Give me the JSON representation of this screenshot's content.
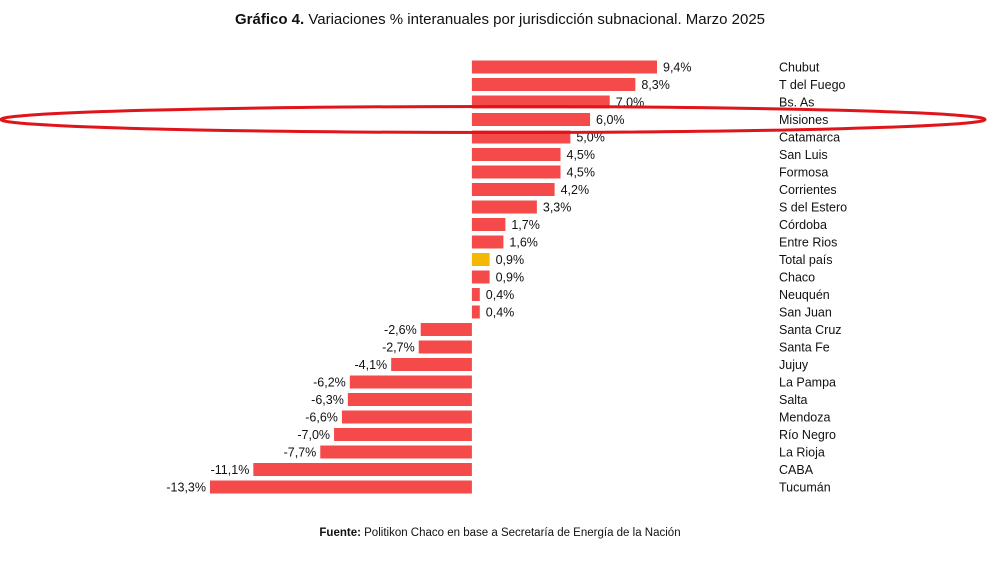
{
  "chart_data": {
    "type": "hbar",
    "title_prefix": "Gráfico 4.",
    "title": "Variaciones % interanuales por jurisdicción subnacional. Marzo 2025",
    "source_prefix": "Fuente:",
    "source": "Politikon Chaco en base a Secretaría de Energía de la Nación",
    "categories": [
      "Chubut",
      "T del Fuego",
      "Bs. As",
      "Misiones",
      "Catamarca",
      "San Luis",
      "Formosa",
      "Corrientes",
      "S del Estero",
      "Córdoba",
      "Entre Rios",
      "Total país",
      "Chaco",
      "Neuquén",
      "San Juan",
      "Santa Cruz",
      "Santa Fe",
      "Jujuy",
      "La Pampa",
      "Salta",
      "Mendoza",
      "Río Negro",
      "La Rioja",
      "CABA",
      "Tucumán"
    ],
    "values": [
      9.4,
      8.3,
      7.0,
      6.0,
      5.0,
      4.5,
      4.5,
      4.2,
      3.3,
      1.7,
      1.6,
      0.9,
      0.9,
      0.4,
      0.4,
      -2.6,
      -2.7,
      -4.1,
      -6.2,
      -6.3,
      -6.6,
      -7.0,
      -7.7,
      -11.1,
      -13.3
    ],
    "value_labels": [
      "9,4%",
      "8,3%",
      "7,0%",
      "6,0%",
      "5,0%",
      "4,5%",
      "4,5%",
      "4,2%",
      "3,3%",
      "1,7%",
      "1,6%",
      "0,9%",
      "0,9%",
      "0,4%",
      "0,4%",
      "-2,6%",
      "-2,7%",
      "-4,1%",
      "-6,2%",
      "-6,3%",
      "-6,6%",
      "-7,0%",
      "-7,7%",
      "-11,1%",
      "-13,3%"
    ],
    "colors": [
      "#f44a4a",
      "#f44a4a",
      "#f44a4a",
      "#f44a4a",
      "#f44a4a",
      "#f44a4a",
      "#f44a4a",
      "#f44a4a",
      "#f44a4a",
      "#f44a4a",
      "#f44a4a",
      "#f5b800",
      "#f44a4a",
      "#f44a4a",
      "#f44a4a",
      "#f44a4a",
      "#f44a4a",
      "#f44a4a",
      "#f44a4a",
      "#f44a4a",
      "#f44a4a",
      "#f44a4a",
      "#f44a4a",
      "#f44a4a",
      "#f44a4a"
    ]
  }
}
